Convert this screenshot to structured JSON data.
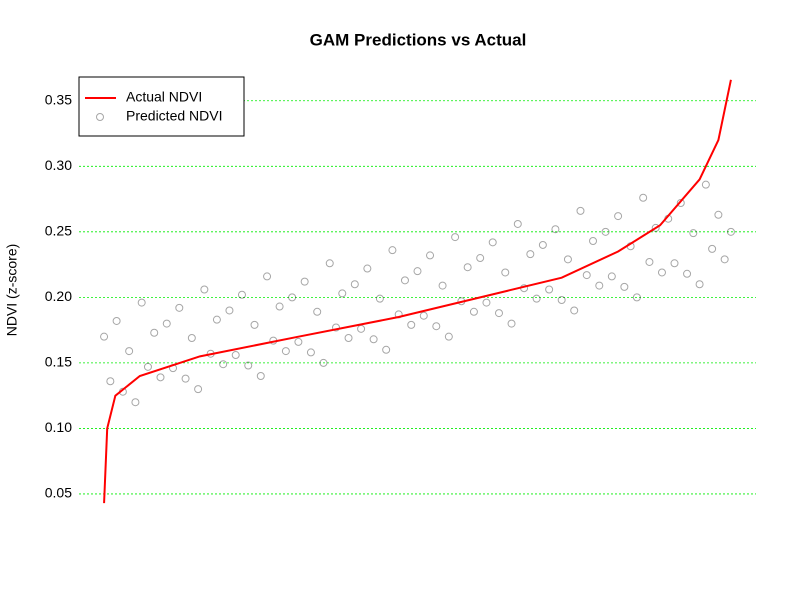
{
  "chart_data": {
    "type": "scatter",
    "title": "GAM Predictions vs Actual",
    "y_label": "NDVI (z-score)",
    "xlim": [
      -4,
      104
    ],
    "ylim": [
      0.037,
      0.375
    ],
    "yticks": [
      {
        "value": 0.05,
        "label": "0.05"
      },
      {
        "value": 0.1,
        "label": "0.10"
      },
      {
        "value": 0.15,
        "label": "0.15"
      },
      {
        "value": 0.2,
        "label": "0.20"
      },
      {
        "value": 0.25,
        "label": "0.25"
      },
      {
        "value": 0.3,
        "label": "0.30"
      },
      {
        "value": 0.35,
        "label": "0.35"
      }
    ],
    "grid": true,
    "legend": "top-left",
    "series": [
      {
        "name": "Actual NDVI",
        "kind": "line",
        "color": "#ff0000",
        "x": [
          0,
          0.5,
          1.8,
          5.7,
          15.3,
          31,
          47,
          60,
          73,
          82,
          88.7,
          95,
          98,
          100
        ],
        "values": [
          0.043,
          0.1,
          0.125,
          0.14,
          0.155,
          0.17,
          0.185,
          0.2,
          0.215,
          0.235,
          0.255,
          0.29,
          0.32,
          0.366
        ]
      },
      {
        "name": "Predicted NDVI",
        "kind": "points",
        "color": "#000000",
        "x": [
          0,
          1,
          2,
          3,
          4,
          5,
          6,
          7,
          8,
          9,
          10,
          11,
          12,
          13,
          14,
          15,
          16,
          17,
          18,
          19,
          20,
          21,
          22,
          23,
          24,
          25,
          26,
          27,
          28,
          29,
          30,
          31,
          32,
          33,
          34,
          35,
          36,
          37,
          38,
          39,
          40,
          41,
          42,
          43,
          44,
          45,
          46,
          47,
          48,
          49,
          50,
          51,
          52,
          53,
          54,
          55,
          56,
          57,
          58,
          59,
          60,
          61,
          62,
          63,
          64,
          65,
          66,
          67,
          68,
          69,
          70,
          71,
          72,
          73,
          74,
          75,
          76,
          77,
          78,
          79,
          80,
          81,
          82,
          83,
          84,
          85,
          86,
          87,
          88,
          89,
          90,
          91,
          92,
          93,
          94,
          95,
          96,
          97,
          98,
          99,
          100
        ],
        "values": [
          0.17,
          0.136,
          0.182,
          0.128,
          0.159,
          0.12,
          0.196,
          0.147,
          0.173,
          0.139,
          0.18,
          0.146,
          0.192,
          0.138,
          0.169,
          0.13,
          0.206,
          0.157,
          0.183,
          0.149,
          0.19,
          0.156,
          0.202,
          0.148,
          0.179,
          0.14,
          0.216,
          0.167,
          0.193,
          0.159,
          0.2,
          0.166,
          0.212,
          0.158,
          0.189,
          0.15,
          0.226,
          0.177,
          0.203,
          0.169,
          0.21,
          0.176,
          0.222,
          0.168,
          0.199,
          0.16,
          0.236,
          0.187,
          0.213,
          0.179,
          0.22,
          0.186,
          0.232,
          0.178,
          0.209,
          0.17,
          0.246,
          0.197,
          0.223,
          0.189,
          0.23,
          0.196,
          0.242,
          0.188,
          0.219,
          0.18,
          0.256,
          0.207,
          0.233,
          0.199,
          0.24,
          0.206,
          0.252,
          0.198,
          0.229,
          0.19,
          0.266,
          0.217,
          0.243,
          0.209,
          0.25,
          0.216,
          0.262,
          0.208,
          0.239,
          0.2,
          0.276,
          0.227,
          0.253,
          0.219,
          0.26,
          0.226,
          0.272,
          0.218,
          0.249,
          0.21,
          0.286,
          0.237,
          0.263,
          0.229,
          0.25
        ]
      }
    ]
  }
}
